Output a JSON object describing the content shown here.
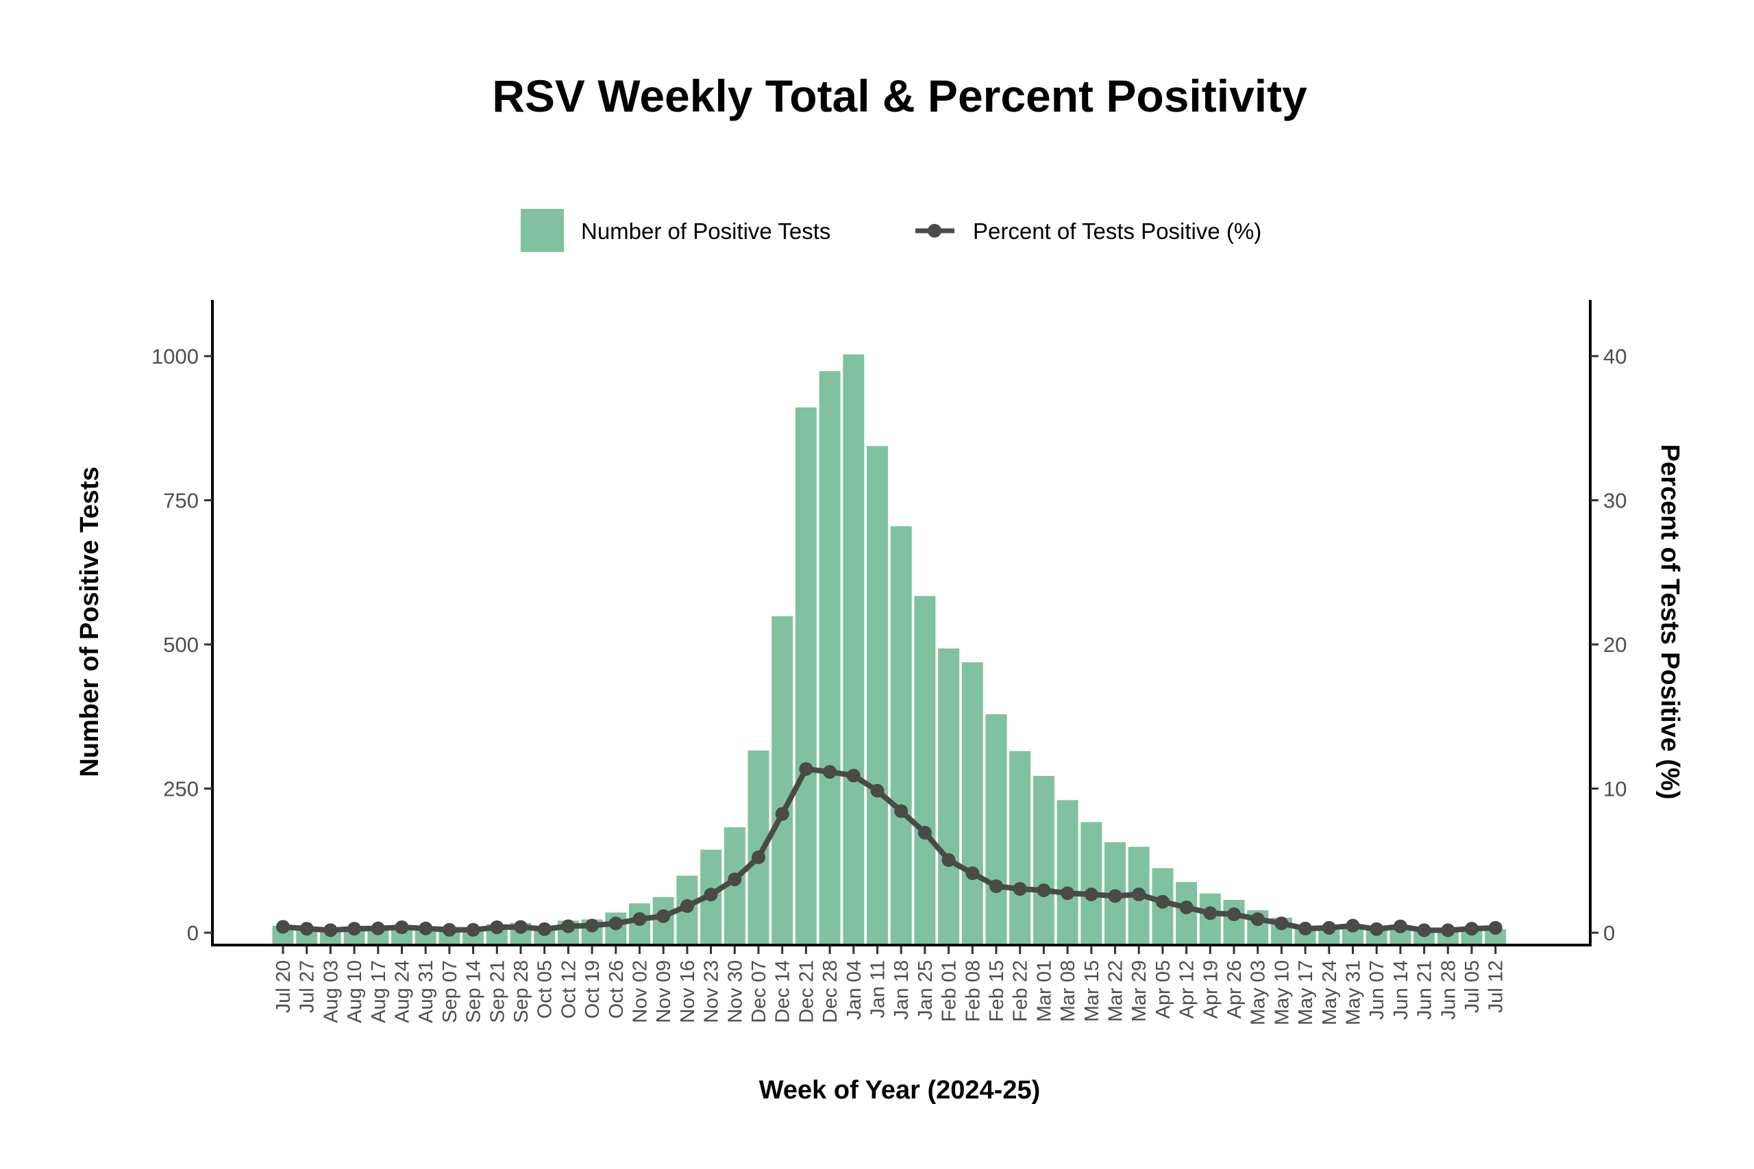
{
  "chart_data": {
    "type": "bar+line",
    "title": "RSV Weekly Total & Percent Positivity",
    "xlabel": "Week of Year (2024-25)",
    "ylabel": "Number of Positive Tests",
    "y2label": "Percent of Tests Positive (%)",
    "ylim": [
      0,
      1100
    ],
    "y2lim": [
      0,
      44
    ],
    "yticks": [
      0,
      250,
      500,
      750,
      1000
    ],
    "y2ticks": [
      0,
      10,
      20,
      30,
      40
    ],
    "grid": false,
    "legend_position": "top",
    "legend": [
      {
        "name": "Number of Positive Tests",
        "kind": "bar"
      },
      {
        "name": "Percent of Tests Positive (%)",
        "kind": "line+point"
      }
    ],
    "colors": {
      "bar": "#80c29f",
      "line": "#4a4a46"
    },
    "categories": [
      "Jul 20",
      "Jul 27",
      "Aug 03",
      "Aug 10",
      "Aug 17",
      "Aug 24",
      "Aug 31",
      "Sep 07",
      "Sep 14",
      "Sep 21",
      "Sep 28",
      "Oct 05",
      "Oct 12",
      "Oct 19",
      "Oct 26",
      "Nov 02",
      "Nov 09",
      "Nov 16",
      "Nov 23",
      "Nov 30",
      "Dec 07",
      "Dec 14",
      "Dec 21",
      "Dec 28",
      "Jan 04",
      "Jan 11",
      "Jan 18",
      "Jan 25",
      "Feb 01",
      "Feb 08",
      "Feb 15",
      "Feb 22",
      "Mar 01",
      "Mar 08",
      "Mar 15",
      "Mar 22",
      "Mar 29",
      "Apr 05",
      "Apr 12",
      "Apr 19",
      "Apr 26",
      "May 03",
      "May 10",
      "May 17",
      "May 24",
      "May 31",
      "Jun 07",
      "Jun 14",
      "Jun 21",
      "Jun 28",
      "Jul 05",
      "Jul 12"
    ],
    "series": [
      {
        "name": "Number of Positive Tests",
        "type": "bar",
        "axis": "left",
        "values": [
          12,
          6,
          4,
          5,
          6,
          7,
          6,
          3,
          7,
          15,
          17,
          5,
          21,
          23,
          35,
          51,
          62,
          99,
          144,
          183,
          316,
          549,
          911,
          974,
          1003,
          844,
          705,
          584,
          493,
          469,
          379,
          315,
          272,
          230,
          192,
          157,
          149,
          112,
          88,
          68,
          57,
          39,
          26,
          8,
          6,
          15,
          5,
          7,
          3,
          3,
          5,
          6
        ]
      },
      {
        "name": "Percent of Tests Positive (%)",
        "type": "line",
        "axis": "right",
        "values": [
          0.41,
          0.28,
          0.18,
          0.28,
          0.3,
          0.38,
          0.3,
          0.2,
          0.2,
          0.38,
          0.4,
          0.25,
          0.45,
          0.5,
          0.65,
          0.95,
          1.15,
          1.85,
          2.65,
          3.7,
          5.23,
          8.24,
          11.36,
          11.16,
          10.9,
          9.85,
          8.44,
          6.94,
          5.04,
          4.13,
          3.23,
          3.04,
          2.94,
          2.74,
          2.66,
          2.55,
          2.66,
          2.15,
          1.76,
          1.36,
          1.28,
          0.94,
          0.65,
          0.29,
          0.34,
          0.49,
          0.25,
          0.44,
          0.17,
          0.17,
          0.28,
          0.34
        ]
      }
    ]
  }
}
